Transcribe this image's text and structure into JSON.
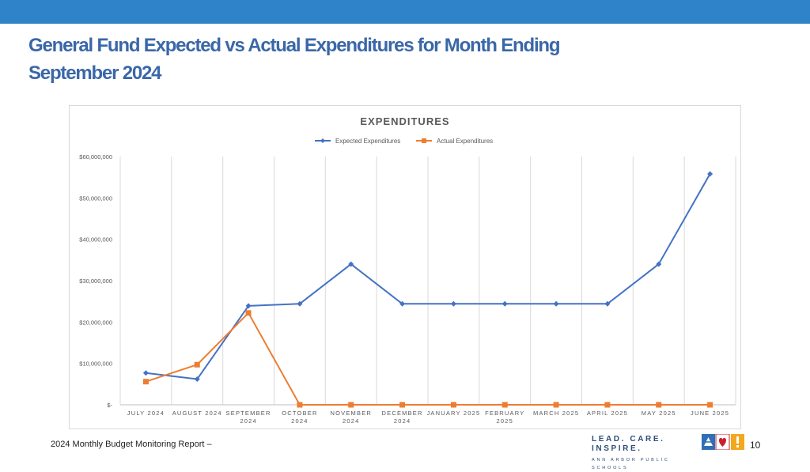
{
  "slide": {
    "title": "General Fund Expected vs Actual Expenditures for Month Ending September 2024",
    "footer": "2024 Monthly Budget Monitoring Report –",
    "page_number": "10",
    "brand": {
      "motto": "LEAD. CARE. INSPIRE.",
      "school": "ANN ARBOR PUBLIC SCHOOLS",
      "logo": "aaps-logo-icon"
    }
  },
  "colors": {
    "top_bar": "#2e83c9",
    "title": "#3a67a8",
    "expected": "#4472c4",
    "actual": "#ed7d31",
    "grid": "#d9d9d9"
  },
  "chart_data": {
    "type": "line",
    "title": "EXPENDITURES",
    "xlabel": "",
    "ylabel": "",
    "legend_position": "top-center",
    "grid": true,
    "ylim": [
      0,
      60000000
    ],
    "yticks": [
      {
        "value": 60000000,
        "label": "$60,000,000"
      },
      {
        "value": 50000000,
        "label": "$50,000,000"
      },
      {
        "value": 40000000,
        "label": "$40,000,000"
      },
      {
        "value": 30000000,
        "label": "$30,000,000"
      },
      {
        "value": 20000000,
        "label": "$20,000,000"
      },
      {
        "value": 10000000,
        "label": "$10,000,000"
      },
      {
        "value": 0,
        "label": "$-"
      }
    ],
    "categories": [
      [
        "JULY 2024"
      ],
      [
        "AUGUST 2024"
      ],
      [
        "SEPTEMBER",
        "2024"
      ],
      [
        "OCTOBER",
        "2024"
      ],
      [
        "NOVEMBER",
        "2024"
      ],
      [
        "DECEMBER",
        "2024"
      ],
      [
        "JANUARY 2025"
      ],
      [
        "FEBRUARY",
        "2025"
      ],
      [
        "MARCH 2025"
      ],
      [
        "APRIL 2025"
      ],
      [
        "MAY 2025"
      ],
      [
        "JUNE 2025"
      ]
    ],
    "series": [
      {
        "name": "Expected Expenditures",
        "marker": "diamond",
        "color": "#4472c4",
        "values": [
          7700000,
          6200000,
          23900000,
          24400000,
          34000000,
          24400000,
          24400000,
          24400000,
          24400000,
          24400000,
          34000000,
          55800000
        ]
      },
      {
        "name": "Actual Expenditures",
        "marker": "square",
        "color": "#ed7d31",
        "values": [
          5600000,
          9700000,
          22200000,
          0,
          0,
          0,
          0,
          0,
          0,
          0,
          0,
          0
        ]
      }
    ]
  }
}
